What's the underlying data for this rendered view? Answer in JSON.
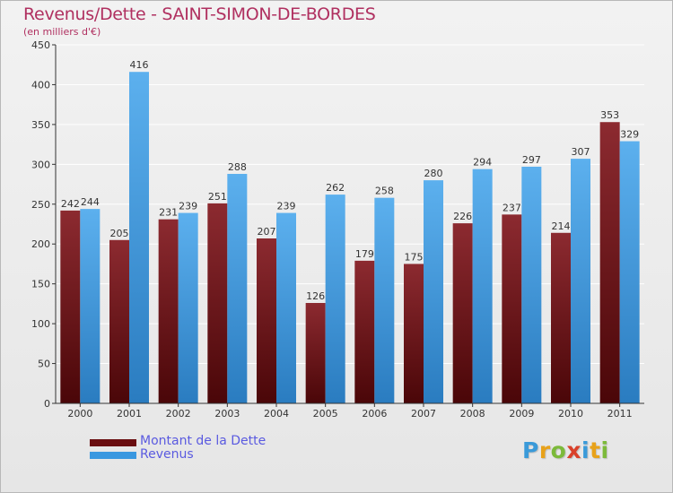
{
  "header": {
    "title": "Revenus/Dette - SAINT-SIMON-DE-BORDES",
    "subtitle": "(en milliers d'€)"
  },
  "chart_data": {
    "type": "bar",
    "title": "Revenus/Dette - SAINT-SIMON-DE-BORDES",
    "ylabel": "(en milliers d'€)",
    "xlabel": "",
    "ylim": [
      0,
      450
    ],
    "yticks": [
      0,
      50,
      100,
      150,
      200,
      250,
      300,
      350,
      400,
      450
    ],
    "grid": true,
    "legend_position": "bottom-left",
    "categories": [
      "2000",
      "2001",
      "2002",
      "2003",
      "2004",
      "2005",
      "2006",
      "2007",
      "2008",
      "2009",
      "2010",
      "2011"
    ],
    "series": [
      {
        "name": "Montant de la Dette",
        "color": "#7a1c22",
        "values": [
          242,
          205,
          231,
          251,
          207,
          126,
          179,
          175,
          226,
          237,
          214,
          353
        ]
      },
      {
        "name": "Revenus",
        "color": "#4aa3e6",
        "values": [
          244,
          416,
          239,
          288,
          239,
          262,
          258,
          280,
          294,
          297,
          307,
          329
        ]
      }
    ]
  },
  "legend": {
    "items": [
      {
        "label": "Montant de la Dette",
        "color": "#6a0e10"
      },
      {
        "label": "Revenus",
        "color": "#3a98e0"
      }
    ]
  },
  "logo": {
    "letters": [
      "P",
      "r",
      "o",
      "x",
      "i",
      "t",
      "i"
    ],
    "colors": [
      "#3a9ad9",
      "#e8a21a",
      "#7cba3a",
      "#d9402a",
      "#3a9ad9",
      "#e8a21a",
      "#7cba3a"
    ]
  }
}
